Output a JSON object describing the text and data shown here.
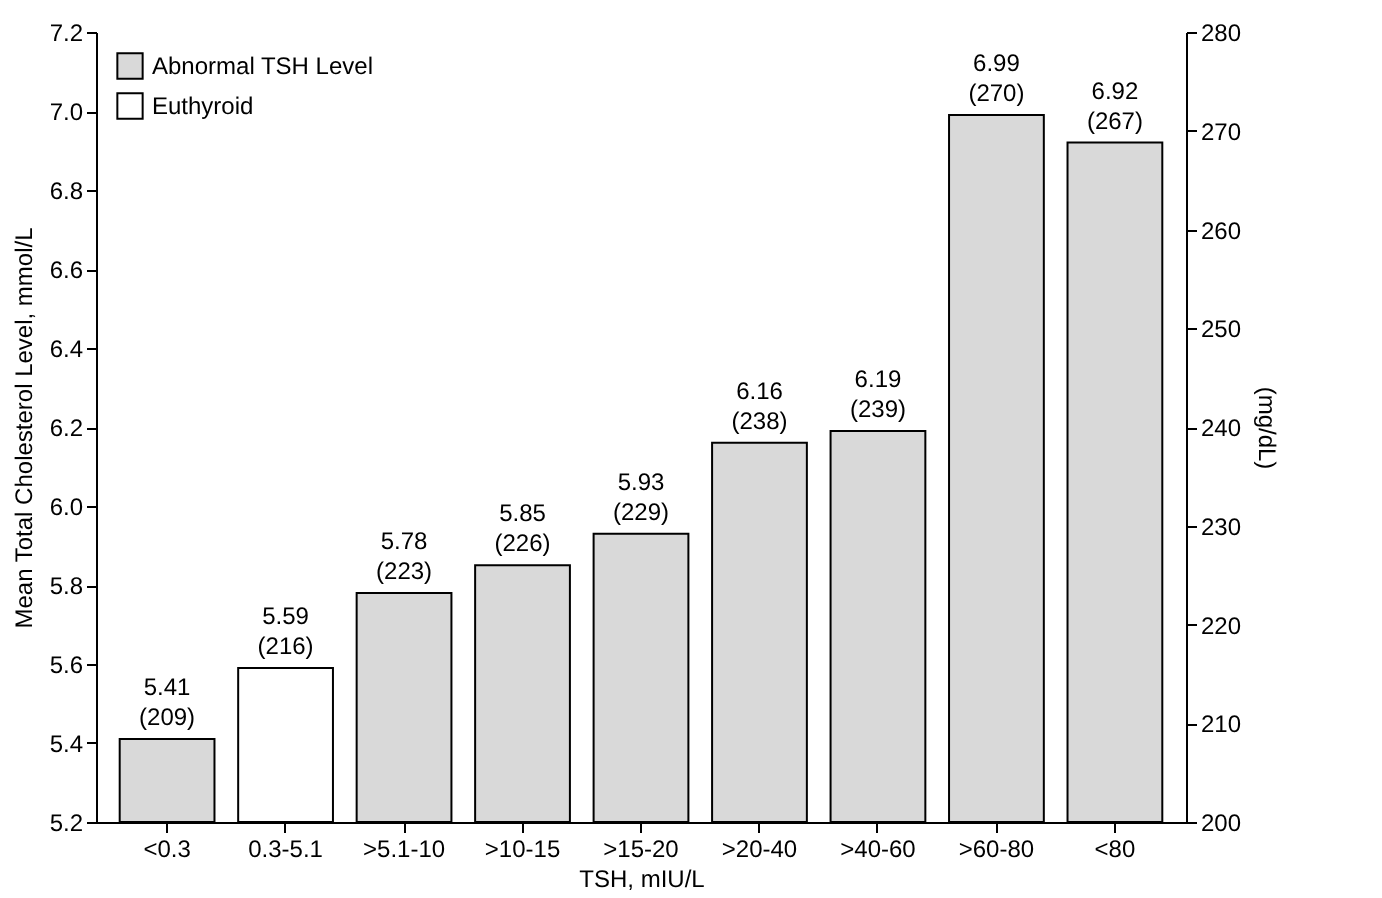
{
  "chart_data": {
    "type": "bar",
    "xlabel": "TSH, mIU/L",
    "ylabel": "Mean Total Cholesterol Level, mmol/L",
    "y2label": "(mg/dL)",
    "categories": [
      "<0.3",
      "0.3-5.1",
      ">5.1-10",
      ">10-15",
      ">15-20",
      ">20-40",
      ">40-60",
      ">60-80",
      "<80"
    ],
    "series": [
      {
        "name": "Abnormal TSH Level",
        "color": "#d9d9d9",
        "values": [
          5.41,
          null,
          5.78,
          5.85,
          5.93,
          6.16,
          6.19,
          6.99,
          6.92
        ],
        "value_labels": [
          "5.41\n(209)",
          null,
          "5.78\n(223)",
          "5.85\n(226)",
          "5.93\n(229)",
          "6.16\n(238)",
          "6.19\n(239)",
          "6.99\n(270)",
          "6.92\n(267)"
        ]
      },
      {
        "name": "Euthyroid",
        "color": "#ffffff",
        "values": [
          null,
          5.59,
          null,
          null,
          null,
          null,
          null,
          null,
          null
        ],
        "value_labels": [
          null,
          "5.59\n(216)",
          null,
          null,
          null,
          null,
          null,
          null,
          null
        ]
      }
    ],
    "ylim": [
      5.2,
      7.2
    ],
    "yticks": [
      5.2,
      5.4,
      5.6,
      5.8,
      {
        "value": 6,
        "label": "6.0"
      },
      6.2,
      6.4,
      6.6,
      6.8,
      {
        "value": 7,
        "label": "7.0"
      },
      7.2
    ],
    "y2lim": [
      200,
      280
    ],
    "y2ticks": [
      200,
      210,
      220,
      230,
      240,
      250,
      260,
      270,
      280
    ],
    "legend": "top left",
    "grid": false
  }
}
